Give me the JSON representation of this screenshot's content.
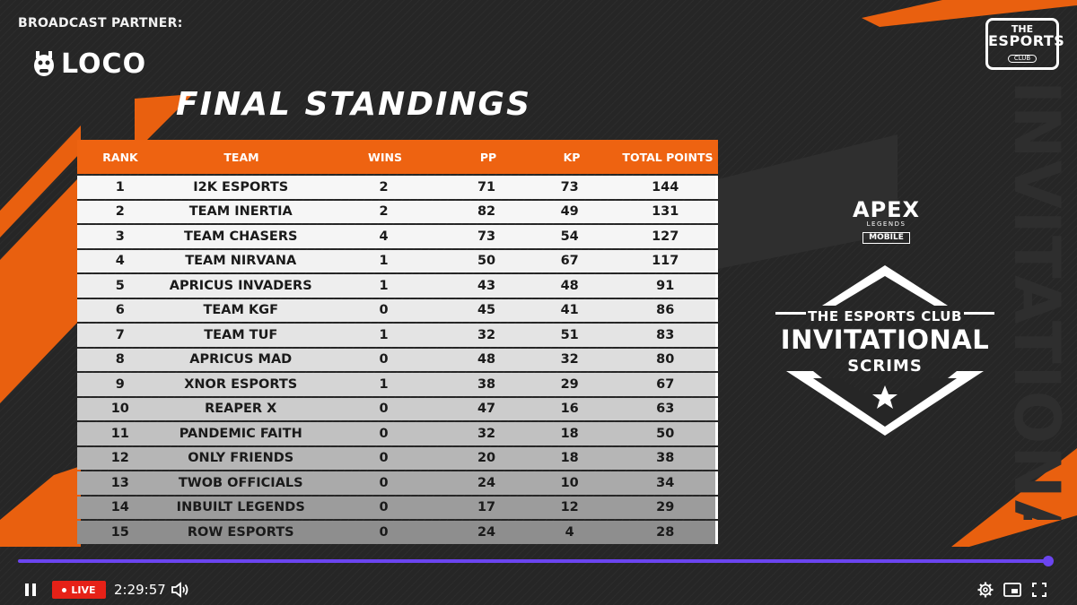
{
  "broadcast": {
    "partner_label": "BROADCAST PARTNER:",
    "partner_name": "LOCO"
  },
  "club_logo": {
    "line1": "THE",
    "line2": "ESPORTS",
    "line3": "CLUB"
  },
  "title": "FINAL STANDINGS",
  "table": {
    "columns": [
      "RANK",
      "TEAM",
      "WINS",
      "PP",
      "KP",
      "TOTAL POINTS"
    ],
    "rows": [
      {
        "rank": "1",
        "team": "I2K ESPORTS",
        "wins": "2",
        "pp": "71",
        "kp": "73",
        "total": "144"
      },
      {
        "rank": "2",
        "team": "TEAM INERTIA",
        "wins": "2",
        "pp": "82",
        "kp": "49",
        "total": "131"
      },
      {
        "rank": "3",
        "team": "TEAM CHASERS",
        "wins": "4",
        "pp": "73",
        "kp": "54",
        "total": "127"
      },
      {
        "rank": "4",
        "team": "TEAM NIRVANA",
        "wins": "1",
        "pp": "50",
        "kp": "67",
        "total": "117"
      },
      {
        "rank": "5",
        "team": "APRICUS INVADERS",
        "wins": "1",
        "pp": "43",
        "kp": "48",
        "total": "91"
      },
      {
        "rank": "6",
        "team": "TEAM KGF",
        "wins": "0",
        "pp": "45",
        "kp": "41",
        "total": "86"
      },
      {
        "rank": "7",
        "team": "TEAM TUF",
        "wins": "1",
        "pp": "32",
        "kp": "51",
        "total": "83"
      },
      {
        "rank": "8",
        "team": "APRICUS MAD",
        "wins": "0",
        "pp": "48",
        "kp": "32",
        "total": "80"
      },
      {
        "rank": "9",
        "team": "XNOR ESPORTS",
        "wins": "1",
        "pp": "38",
        "kp": "29",
        "total": "67"
      },
      {
        "rank": "10",
        "team": "REAPER X",
        "wins": "0",
        "pp": "47",
        "kp": "16",
        "total": "63"
      },
      {
        "rank": "11",
        "team": "PANDEMIC FAITH",
        "wins": "0",
        "pp": "32",
        "kp": "18",
        "total": "50"
      },
      {
        "rank": "12",
        "team": "ONLY FRIENDS",
        "wins": "0",
        "pp": "20",
        "kp": "18",
        "total": "38"
      },
      {
        "rank": "13",
        "team": "TWOB OFFICIALS",
        "wins": "0",
        "pp": "24",
        "kp": "10",
        "total": "34"
      },
      {
        "rank": "14",
        "team": "INBUILT LEGENDS",
        "wins": "0",
        "pp": "17",
        "kp": "12",
        "total": "29"
      },
      {
        "rank": "15",
        "team": "ROW ESPORTS",
        "wins": "0",
        "pp": "24",
        "kp": "4",
        "total": "28"
      }
    ]
  },
  "apex_logo": {
    "title": "APEX",
    "subtitle": "LEGENDS",
    "badge": "MOBILE"
  },
  "event_logo": {
    "top": "THE ESPORTS CLUB",
    "main": "INVITATIONAL",
    "sub": "SCRIMS"
  },
  "vertical_text": "INVITATIONAL",
  "player": {
    "live_label": "LIVE",
    "time": "2:29:57",
    "progress": 1.0,
    "accent_color": "#6b45f0",
    "live_color": "#e62117"
  },
  "colors": {
    "orange": "#ee6311",
    "bg": "#262626"
  }
}
